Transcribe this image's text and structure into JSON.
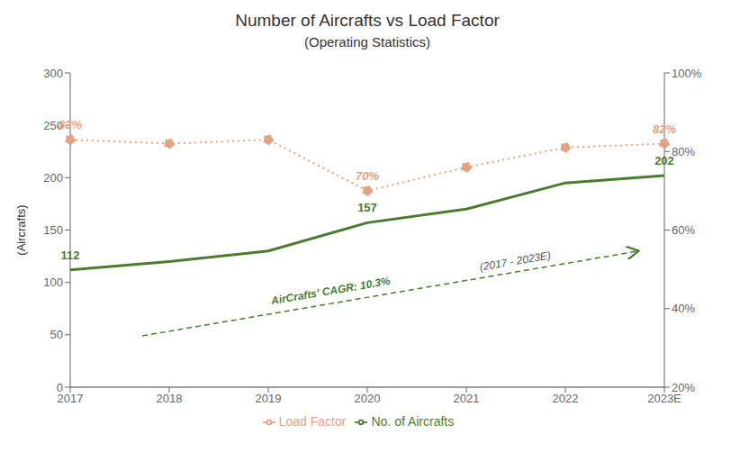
{
  "chart_data": {
    "type": "line",
    "title": "Number of Aircrafts vs Load Factor",
    "subtitle": "(Operating Statistics)",
    "y_label": "(Aircrafts)",
    "categories": [
      "2017",
      "2018",
      "2019",
      "2020",
      "2021",
      "2022",
      "2023E"
    ],
    "series": [
      {
        "name": "No. of Aircrafts",
        "color": "#4a7c2f",
        "values": [
          112,
          120,
          130,
          157,
          170,
          195,
          202
        ],
        "value_labels": [
          "112",
          null,
          null,
          "157",
          null,
          null,
          "202"
        ],
        "line_style": "solid",
        "marker": "none"
      },
      {
        "name": "Load Factor",
        "color": "#e8a080",
        "axis": "y2",
        "values": [
          83,
          82,
          83,
          70,
          76,
          81,
          82
        ],
        "value_labels": [
          "83%",
          null,
          null,
          "70%",
          null,
          null,
          "82%"
        ],
        "line_style": "dotted",
        "marker": "o"
      }
    ],
    "ylim": [
      0,
      300
    ],
    "yticks": [
      0,
      50,
      100,
      150,
      200,
      250,
      300
    ],
    "y2lim": [
      20,
      100
    ],
    "y2ticks": [
      {
        "value": 20,
        "label": "20%"
      },
      {
        "value": 40,
        "label": "40%"
      },
      {
        "value": 60,
        "label": "60%"
      },
      {
        "value": 80,
        "label": "80%"
      },
      {
        "value": 100,
        "label": "100%"
      }
    ],
    "annotations": [
      "AirCrafts' CAGR: 10.3%",
      "(2017 - 2023E)"
    ],
    "grid": false,
    "legend": "bottom"
  }
}
